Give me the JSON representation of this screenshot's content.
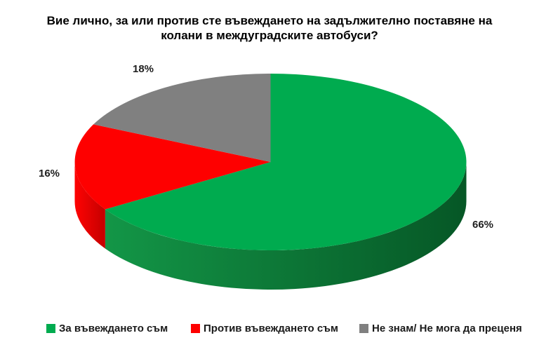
{
  "chart_data": {
    "type": "pie",
    "style": "3d",
    "title": "Вие лично, за или против сте въвеждането на задължително поставяне на колани в междуградските автобуси?",
    "title_lines": [
      "Вие лично, за или против сте въвеждането на задължително поставяне на",
      "колани в междуградските автобуси?"
    ],
    "legend_position": "bottom",
    "background_color": "#ffffff",
    "label_color": "#1f1f1f",
    "start_angle_deg": 0,
    "direction": "clockwise",
    "slices": [
      {
        "label": "За въвеждането съм",
        "value_pct": 66,
        "pct_label": "66%",
        "color": "#00AB4F",
        "side_color": "#139647",
        "side_color_dark": "#065726"
      },
      {
        "label": "Против въвеждането съм",
        "value_pct": 16,
        "pct_label": "16%",
        "color": "#FE0000",
        "side_color": "#FF0303",
        "side_color_dark": "#C40000"
      },
      {
        "label": "Не знам/ Не мога да преценя",
        "value_pct": 18,
        "pct_label": "18%",
        "color": "#808080",
        "side_color": "#6E6E6E",
        "side_color_dark": "#5A5A5A"
      }
    ]
  }
}
